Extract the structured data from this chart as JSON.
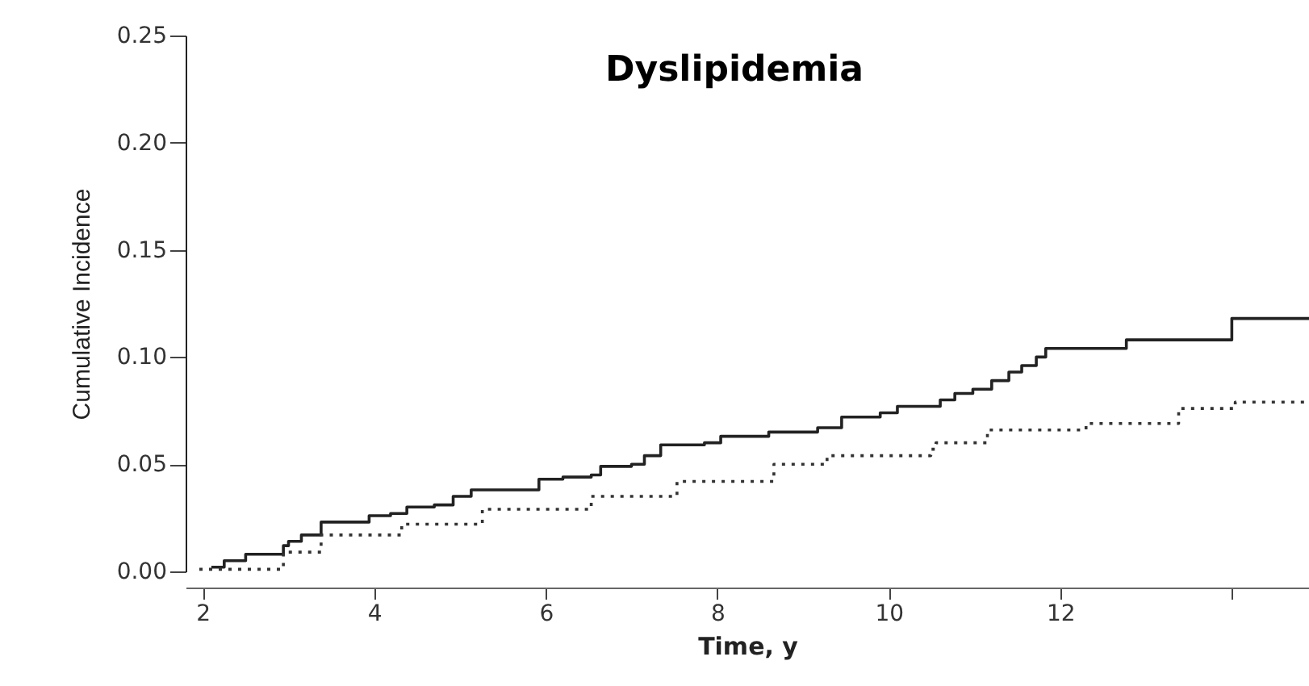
{
  "chart_data": {
    "type": "step",
    "title": "Dyslipidemia",
    "xlabel": "Time, y",
    "ylabel": "Cumulative Incidence",
    "xlim": [
      1.8,
      14.9
    ],
    "ylim": [
      0,
      0.25
    ],
    "xticks": [
      2,
      4,
      6,
      8,
      10,
      12,
      {
        "value": 14,
        "label": null
      }
    ],
    "yticks": [
      {
        "value": 0,
        "label": "0.00"
      },
      {
        "value": 0.05,
        "label": "0.05"
      },
      {
        "value": 0.1,
        "label": "0.10"
      },
      {
        "value": 0.15,
        "label": "0.15"
      },
      {
        "value": 0.2,
        "label": "0.20"
      },
      {
        "value": 0.25,
        "label": "0.25"
      }
    ],
    "grid": false,
    "marker": "none",
    "series": [
      {
        "color": "#222222",
        "line_style": "solid",
        "x": [
          2.1,
          2.25,
          2.5,
          2.94,
          3.0,
          3.15,
          3.38,
          3.94,
          4.19,
          4.38,
          4.7,
          4.92,
          5.13,
          5.92,
          6.2,
          6.53,
          6.64,
          7.0,
          7.15,
          7.34,
          7.85,
          8.04,
          8.6,
          9.17,
          9.45,
          9.9,
          10.1,
          10.6,
          10.77,
          10.98,
          11.2,
          11.4,
          11.55,
          11.72,
          11.83,
          12.77,
          14.0,
          14.9
        ],
        "values": [
          0.002,
          0.005,
          0.008,
          0.012,
          0.014,
          0.017,
          0.023,
          0.026,
          0.027,
          0.03,
          0.031,
          0.035,
          0.038,
          0.043,
          0.044,
          0.045,
          0.049,
          0.05,
          0.054,
          0.059,
          0.06,
          0.063,
          0.065,
          0.067,
          0.072,
          0.074,
          0.077,
          0.08,
          0.083,
          0.085,
          0.089,
          0.093,
          0.096,
          0.1,
          0.104,
          0.108,
          0.118,
          0.118
        ]
      },
      {
        "color": "#333333",
        "line_style": "dotted",
        "x": [
          1.96,
          2.94,
          3.38,
          4.32,
          5.26,
          6.53,
          7.53,
          8.66,
          9.28,
          10.49,
          10.55,
          11.15,
          12.3,
          13.38,
          14.04,
          14.9
        ],
        "values": [
          0.001,
          0.009,
          0.017,
          0.022,
          0.029,
          0.035,
          0.042,
          0.05,
          0.054,
          0.057,
          0.06,
          0.066,
          0.069,
          0.076,
          0.079,
          0.079
        ]
      }
    ]
  }
}
